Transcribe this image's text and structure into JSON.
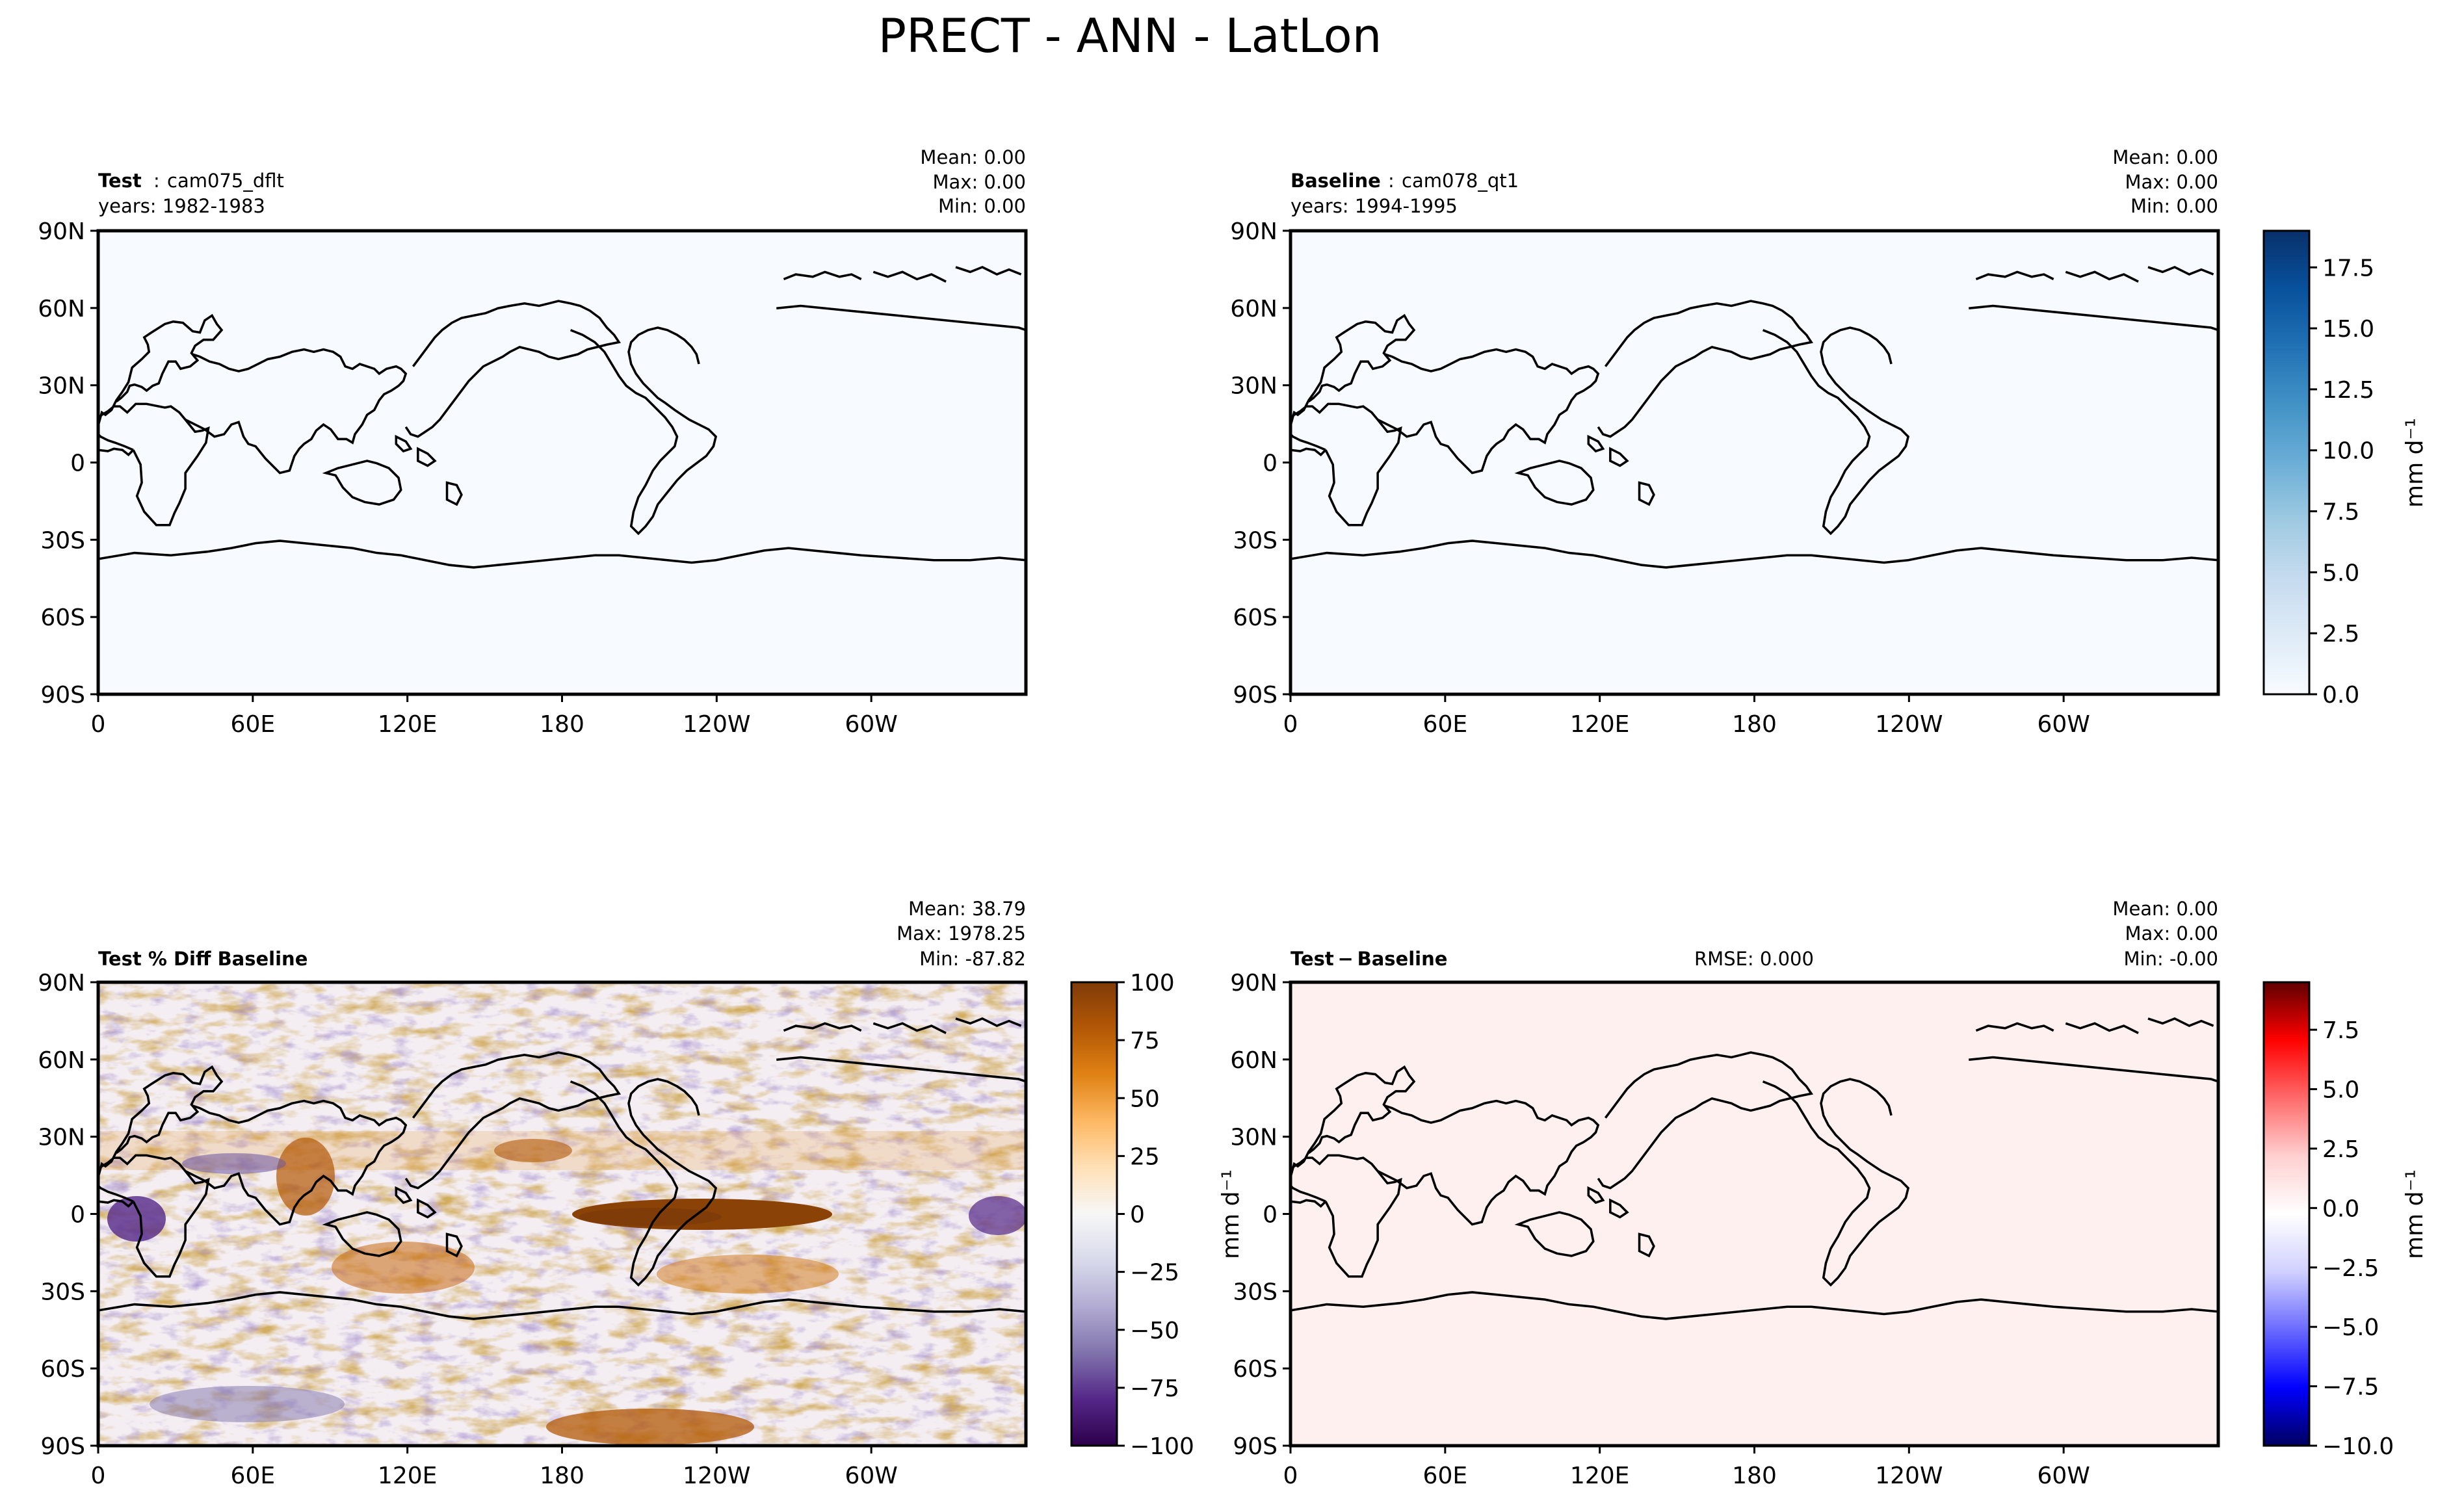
{
  "figure_title": "PRECT - ANN - LatLon",
  "lat_ticks": [
    "90N",
    "60N",
    "30N",
    "0",
    "30S",
    "60S",
    "90S"
  ],
  "lon_ticks": [
    "0",
    "60E",
    "120E",
    "180",
    "120W",
    "60W"
  ],
  "chart_data": [
    {
      "type": "heatmap",
      "panel": "test",
      "title_bold": "Test",
      "title_sep": ":",
      "title_name": "cam075_dflt",
      "subtitle": "years: 1982-1983",
      "stats": {
        "mean": "Mean:  0.00",
        "max": "Max:  0.00",
        "min": "Min:  0.00"
      },
      "fill": "#f7fbff",
      "xlim": [
        0,
        360
      ],
      "ylim": [
        -90,
        90
      ]
    },
    {
      "type": "heatmap",
      "panel": "baseline",
      "title_bold": "Baseline",
      "title_sep": ":",
      "title_name": "cam078_qt1",
      "subtitle": "years: 1994-1995",
      "stats": {
        "mean": "Mean:  0.00",
        "max": "Max:  0.00",
        "min": "Min:  0.00"
      },
      "fill": "#f7fbff",
      "xlim": [
        0,
        360
      ],
      "ylim": [
        -90,
        90
      ],
      "colorbar": {
        "label": "mm d⁻¹",
        "ticks": [
          "0.0",
          "2.5",
          "5.0",
          "7.5",
          "10.0",
          "12.5",
          "15.0",
          "17.5"
        ],
        "tick_values": [
          0,
          2.5,
          5,
          7.5,
          10,
          12.5,
          15,
          17.5
        ],
        "range": [
          0,
          19
        ],
        "colors": [
          "#f7fbff",
          "#deebf7",
          "#c6dbef",
          "#9ecae1",
          "#6baed6",
          "#4292c6",
          "#2171b5",
          "#08519c",
          "#08306b"
        ]
      }
    },
    {
      "type": "heatmap",
      "panel": "pct_diff",
      "title_bold": "Test % Diff Baseline",
      "stats": {
        "mean": "Mean: 38.79",
        "max": "Max: 1978.25",
        "min": "Min: -87.82"
      },
      "xlim": [
        0,
        360
      ],
      "ylim": [
        -90,
        90
      ],
      "colorbar": {
        "label": "",
        "ticks": [
          "100",
          "75",
          "50",
          "25",
          "0",
          "−25",
          "−50",
          "−75",
          "−100"
        ],
        "tick_values": [
          100,
          75,
          50,
          25,
          0,
          -25,
          -50,
          -75,
          -100
        ],
        "range": [
          -100,
          100
        ],
        "colors": [
          "#2d004b",
          "#542788",
          "#8073ac",
          "#b2abd2",
          "#d8daeb",
          "#f7f7f7",
          "#fee0b6",
          "#fdb863",
          "#e08214",
          "#b35806",
          "#7f3b08"
        ]
      }
    },
    {
      "type": "heatmap",
      "panel": "diff",
      "title_bold": "Test − Baseline",
      "rmse": "RMSE: 0.000",
      "stats": {
        "mean": "Mean:  0.00",
        "max": "Max:  0.00",
        "min": "Min: -0.00"
      },
      "fill": "#fff0f0",
      "xlim": [
        0,
        360
      ],
      "ylim": [
        -90,
        90
      ],
      "ylabel_left": "mm d⁻¹",
      "colorbar": {
        "label": "mm d⁻¹",
        "ticks": [
          "7.5",
          "5.0",
          "2.5",
          "0.0",
          "−2.5",
          "−5.0",
          "−7.5",
          "−10.0"
        ],
        "tick_values": [
          7.5,
          5,
          2.5,
          0,
          -2.5,
          -5,
          -7.5,
          -10
        ],
        "range": [
          -10,
          9.5
        ],
        "colors": [
          "#000060",
          "#0000ff",
          "#6a6aff",
          "#d0d0ff",
          "#ffffff",
          "#ffd0d0",
          "#ff6a6a",
          "#ff0000",
          "#600000"
        ]
      }
    }
  ]
}
